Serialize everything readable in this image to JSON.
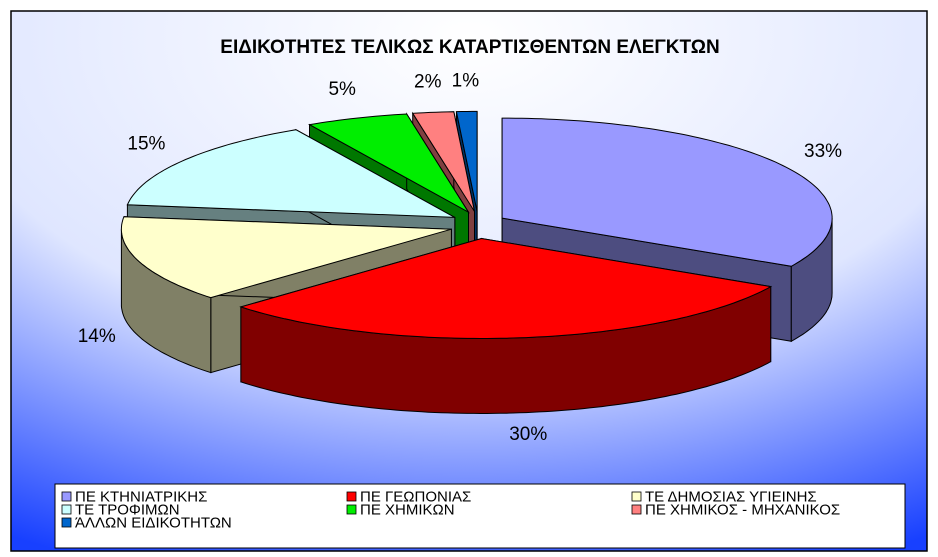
{
  "chart_data": {
    "type": "pie",
    "title": "ΕΙΔΙΚΟΤΗΤΕΣ ΤΕΛΙΚΩΣ ΚΑΤΑΡΤΙΣΘΕΝΤΩΝ ΕΛΕΓΚΤΩΝ",
    "categories": [
      "ΠΕ ΚΤΗΝΙΑΤΡΙΚΗΣ",
      "ΠΕ ΓΕΩΠΟΝΙΑΣ",
      "ΤΕ ΔΗΜΟΣΙΑΣ ΥΓΙΕΙΝΗΣ",
      "ΤΕ ΤΡΟΦΙΜΩΝ",
      "ΠΕ ΧΗΜΙΚΩΝ",
      "ΠΕ ΧΗΜΙΚΟΣ - ΜΗΧΑΝΙΚΟΣ",
      "ΆΛΛΩΝ ΕΙΔΙΚΟΤΗΤΩΝ"
    ],
    "values": [
      33,
      30,
      14,
      15,
      5,
      2,
      1
    ],
    "value_labels": [
      "33%",
      "30%",
      "14%",
      "15%",
      "5%",
      "2%",
      "1%"
    ],
    "colors": [
      "#9999ff",
      "#ff0000",
      "#ffffcc",
      "#ccffff",
      "#00ee00",
      "#ff8080",
      "#0066cc"
    ],
    "legend": "bottom"
  }
}
